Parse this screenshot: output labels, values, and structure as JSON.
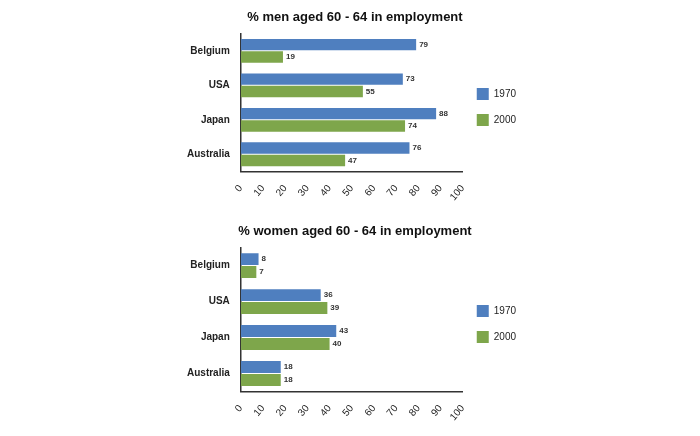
{
  "chart_data": [
    {
      "type": "bar",
      "orientation": "horizontal",
      "title": "% men aged 60 - 64 in employment",
      "categories": [
        "Belgium",
        "USA",
        "Japan",
        "Australia"
      ],
      "series": [
        {
          "name": "1970",
          "color": "#4f7fbf",
          "values": [
            79,
            73,
            88,
            76
          ]
        },
        {
          "name": "2000",
          "color": "#7ea64b",
          "values": [
            19,
            55,
            74,
            47
          ]
        }
      ],
      "xlim": [
        0,
        100
      ],
      "xticks": [
        0,
        10,
        20,
        30,
        40,
        50,
        60,
        70,
        80,
        90,
        100
      ],
      "grid": false,
      "legend": "right",
      "data_labels": true
    },
    {
      "type": "bar",
      "orientation": "horizontal",
      "title": "% women aged 60 - 64 in employment",
      "categories": [
        "Belgium",
        "USA",
        "Japan",
        "Australia"
      ],
      "series": [
        {
          "name": "1970",
          "color": "#4f7fbf",
          "values": [
            8,
            36,
            43,
            18
          ]
        },
        {
          "name": "2000",
          "color": "#7ea64b",
          "values": [
            7,
            39,
            40,
            18
          ]
        }
      ],
      "xlim": [
        0,
        100
      ],
      "xticks": [
        0,
        10,
        20,
        30,
        40,
        50,
        60,
        70,
        80,
        90,
        100
      ],
      "grid": false,
      "legend": "right",
      "data_labels": true
    }
  ]
}
